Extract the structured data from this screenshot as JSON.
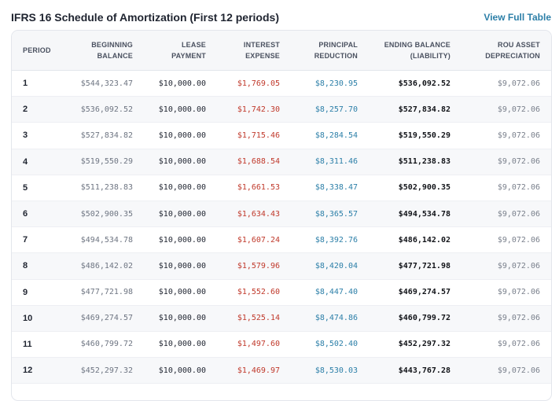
{
  "header": {
    "title": "IFRS 16 Schedule of Amortization (First 12 periods)",
    "view_link": "View Full Table"
  },
  "table": {
    "columns": [
      {
        "l1": "PERIOD",
        "l2": ""
      },
      {
        "l1": "BEGINNING",
        "l2": "BALANCE"
      },
      {
        "l1": "LEASE",
        "l2": "PAYMENT"
      },
      {
        "l1": "INTEREST",
        "l2": "EXPENSE"
      },
      {
        "l1": "PRINCIPAL",
        "l2": "REDUCTION"
      },
      {
        "l1": "ENDING BALANCE",
        "l2": "(LIABILITY)"
      },
      {
        "l1": "ROU ASSET",
        "l2": "DEPRECIATION"
      }
    ],
    "rows": [
      {
        "period": "1",
        "beginning": "$544,323.47",
        "payment": "$10,000.00",
        "interest": "$1,769.05",
        "principal": "$8,230.95",
        "ending": "$536,092.52",
        "rou": "$9,072.06"
      },
      {
        "period": "2",
        "beginning": "$536,092.52",
        "payment": "$10,000.00",
        "interest": "$1,742.30",
        "principal": "$8,257.70",
        "ending": "$527,834.82",
        "rou": "$9,072.06"
      },
      {
        "period": "3",
        "beginning": "$527,834.82",
        "payment": "$10,000.00",
        "interest": "$1,715.46",
        "principal": "$8,284.54",
        "ending": "$519,550.29",
        "rou": "$9,072.06"
      },
      {
        "period": "4",
        "beginning": "$519,550.29",
        "payment": "$10,000.00",
        "interest": "$1,688.54",
        "principal": "$8,311.46",
        "ending": "$511,238.83",
        "rou": "$9,072.06"
      },
      {
        "period": "5",
        "beginning": "$511,238.83",
        "payment": "$10,000.00",
        "interest": "$1,661.53",
        "principal": "$8,338.47",
        "ending": "$502,900.35",
        "rou": "$9,072.06"
      },
      {
        "period": "6",
        "beginning": "$502,900.35",
        "payment": "$10,000.00",
        "interest": "$1,634.43",
        "principal": "$8,365.57",
        "ending": "$494,534.78",
        "rou": "$9,072.06"
      },
      {
        "period": "7",
        "beginning": "$494,534.78",
        "payment": "$10,000.00",
        "interest": "$1,607.24",
        "principal": "$8,392.76",
        "ending": "$486,142.02",
        "rou": "$9,072.06"
      },
      {
        "period": "8",
        "beginning": "$486,142.02",
        "payment": "$10,000.00",
        "interest": "$1,579.96",
        "principal": "$8,420.04",
        "ending": "$477,721.98",
        "rou": "$9,072.06"
      },
      {
        "period": "9",
        "beginning": "$477,721.98",
        "payment": "$10,000.00",
        "interest": "$1,552.60",
        "principal": "$8,447.40",
        "ending": "$469,274.57",
        "rou": "$9,072.06"
      },
      {
        "period": "10",
        "beginning": "$469,274.57",
        "payment": "$10,000.00",
        "interest": "$1,525.14",
        "principal": "$8,474.86",
        "ending": "$460,799.72",
        "rou": "$9,072.06"
      },
      {
        "period": "11",
        "beginning": "$460,799.72",
        "payment": "$10,000.00",
        "interest": "$1,497.60",
        "principal": "$8,502.40",
        "ending": "$452,297.32",
        "rou": "$9,072.06"
      },
      {
        "period": "12",
        "beginning": "$452,297.32",
        "payment": "$10,000.00",
        "interest": "$1,469.97",
        "principal": "$8,530.03",
        "ending": "$443,767.28",
        "rou": "$9,072.06"
      }
    ]
  },
  "colors": {
    "interest": "#c0392b",
    "principal": "#2c7fa8",
    "link": "#2c7fa8"
  }
}
